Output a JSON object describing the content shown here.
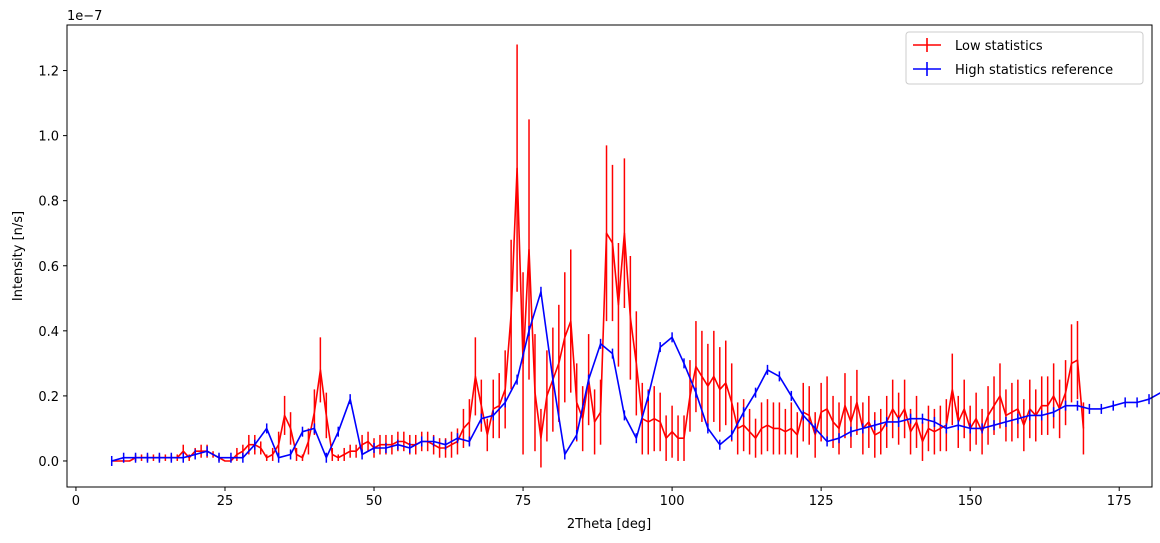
{
  "chart_data": {
    "type": "line",
    "xlabel": "2Theta [deg]",
    "ylabel": "Intensity [n/s]",
    "y_offset_label": "1e−7",
    "xlim": [
      -1.5,
      180.5
    ],
    "ylim": [
      -0.08,
      1.34
    ],
    "xticks": [
      0,
      25,
      50,
      75,
      100,
      125,
      150,
      175
    ],
    "x_tick_labels": [
      "0",
      "25",
      "50",
      "75",
      "100",
      "125",
      "150",
      "175"
    ],
    "yticks": [
      0.0,
      0.2,
      0.4,
      0.6,
      0.8,
      1.0,
      1.2
    ],
    "y_tick_labels": [
      "0.0",
      "0.2",
      "0.4",
      "0.6",
      "0.8",
      "1.0",
      "1.2"
    ],
    "grid": false,
    "legend_position": "top-right",
    "series": [
      {
        "name": "Low statistics",
        "color": "#ff0000",
        "x_start": 6,
        "x_step": 1,
        "values": [
          0.0,
          0.0,
          0.0,
          0.0,
          0.01,
          0.01,
          0.01,
          0.01,
          0.01,
          0.01,
          0.01,
          0.01,
          0.03,
          0.01,
          0.03,
          0.03,
          0.03,
          0.02,
          0.01,
          0.0,
          0.0,
          0.02,
          0.03,
          0.05,
          0.05,
          0.04,
          0.01,
          0.02,
          0.05,
          0.14,
          0.1,
          0.02,
          0.01,
          0.06,
          0.15,
          0.28,
          0.14,
          0.02,
          0.01,
          0.02,
          0.03,
          0.03,
          0.05,
          0.06,
          0.04,
          0.05,
          0.05,
          0.05,
          0.06,
          0.06,
          0.05,
          0.05,
          0.06,
          0.06,
          0.05,
          0.04,
          0.04,
          0.05,
          0.06,
          0.1,
          0.12,
          0.26,
          0.17,
          0.08,
          0.16,
          0.17,
          0.22,
          0.45,
          0.9,
          0.3,
          0.65,
          0.21,
          0.07,
          0.2,
          0.25,
          0.3,
          0.38,
          0.43,
          0.18,
          0.13,
          0.25,
          0.12,
          0.15,
          0.7,
          0.67,
          0.48,
          0.7,
          0.44,
          0.3,
          0.13,
          0.12,
          0.13,
          0.12,
          0.07,
          0.09,
          0.07,
          0.07,
          0.2,
          0.29,
          0.26,
          0.23,
          0.26,
          0.22,
          0.24,
          0.18,
          0.1,
          0.11,
          0.09,
          0.07,
          0.1,
          0.11,
          0.1,
          0.1,
          0.09,
          0.1,
          0.08,
          0.15,
          0.14,
          0.08,
          0.15,
          0.16,
          0.12,
          0.1,
          0.17,
          0.12,
          0.18,
          0.1,
          0.12,
          0.08,
          0.09,
          0.12,
          0.16,
          0.13,
          0.16,
          0.09,
          0.12,
          0.06,
          0.1,
          0.09,
          0.1,
          0.11,
          0.22,
          0.12,
          0.16,
          0.1,
          0.13,
          0.09,
          0.14,
          0.17,
          0.2,
          0.14,
          0.15,
          0.16,
          0.11,
          0.16,
          0.14,
          0.17,
          0.17,
          0.2,
          0.16,
          0.21,
          0.3,
          0.31,
          0.1
        ],
        "errors": [
          0.0,
          0.0,
          0.0,
          0.0,
          0.01,
          0.01,
          0.01,
          0.01,
          0.01,
          0.01,
          0.01,
          0.01,
          0.02,
          0.01,
          0.01,
          0.02,
          0.02,
          0.01,
          0.01,
          0.0,
          0.0,
          0.02,
          0.02,
          0.03,
          0.03,
          0.02,
          0.01,
          0.02,
          0.04,
          0.06,
          0.05,
          0.02,
          0.01,
          0.04,
          0.07,
          0.1,
          0.07,
          0.02,
          0.01,
          0.02,
          0.02,
          0.02,
          0.03,
          0.03,
          0.03,
          0.03,
          0.03,
          0.03,
          0.03,
          0.03,
          0.03,
          0.03,
          0.03,
          0.03,
          0.03,
          0.03,
          0.03,
          0.04,
          0.04,
          0.06,
          0.07,
          0.12,
          0.08,
          0.05,
          0.09,
          0.1,
          0.12,
          0.23,
          0.38,
          0.28,
          0.4,
          0.18,
          0.09,
          0.14,
          0.16,
          0.18,
          0.2,
          0.22,
          0.12,
          0.1,
          0.14,
          0.1,
          0.1,
          0.27,
          0.24,
          0.19,
          0.23,
          0.19,
          0.16,
          0.11,
          0.1,
          0.1,
          0.09,
          0.07,
          0.08,
          0.07,
          0.07,
          0.11,
          0.14,
          0.14,
          0.13,
          0.14,
          0.13,
          0.13,
          0.12,
          0.08,
          0.08,
          0.07,
          0.06,
          0.08,
          0.08,
          0.08,
          0.08,
          0.07,
          0.08,
          0.07,
          0.09,
          0.09,
          0.07,
          0.09,
          0.1,
          0.08,
          0.08,
          0.1,
          0.08,
          0.1,
          0.08,
          0.08,
          0.07,
          0.07,
          0.08,
          0.09,
          0.08,
          0.09,
          0.07,
          0.08,
          0.06,
          0.07,
          0.07,
          0.07,
          0.08,
          0.11,
          0.08,
          0.09,
          0.07,
          0.08,
          0.07,
          0.09,
          0.09,
          0.1,
          0.08,
          0.09,
          0.09,
          0.08,
          0.09,
          0.08,
          0.09,
          0.09,
          0.1,
          0.09,
          0.1,
          0.12,
          0.12,
          0.08
        ]
      },
      {
        "name": "High statistics reference",
        "color": "#0000ff",
        "x_start": 6,
        "x_step": 2,
        "values": [
          0.0,
          0.01,
          0.01,
          0.01,
          0.01,
          0.01,
          0.01,
          0.02,
          0.03,
          0.01,
          0.01,
          0.01,
          0.05,
          0.1,
          0.01,
          0.02,
          0.09,
          0.1,
          0.01,
          0.09,
          0.19,
          0.02,
          0.04,
          0.04,
          0.05,
          0.04,
          0.06,
          0.06,
          0.05,
          0.07,
          0.06,
          0.13,
          0.14,
          0.18,
          0.25,
          0.4,
          0.52,
          0.25,
          0.02,
          0.08,
          0.25,
          0.36,
          0.33,
          0.14,
          0.07,
          0.2,
          0.35,
          0.38,
          0.3,
          0.21,
          0.1,
          0.05,
          0.08,
          0.15,
          0.21,
          0.28,
          0.26,
          0.2,
          0.14,
          0.1,
          0.06,
          0.07,
          0.09,
          0.1,
          0.11,
          0.12,
          0.12,
          0.13,
          0.13,
          0.12,
          0.1,
          0.11,
          0.1,
          0.1,
          0.11,
          0.12,
          0.13,
          0.14,
          0.14,
          0.15,
          0.17,
          0.17,
          0.16,
          0.16,
          0.17,
          0.18,
          0.18,
          0.19,
          0.21,
          0.22,
          0.17
        ]
      }
    ]
  }
}
